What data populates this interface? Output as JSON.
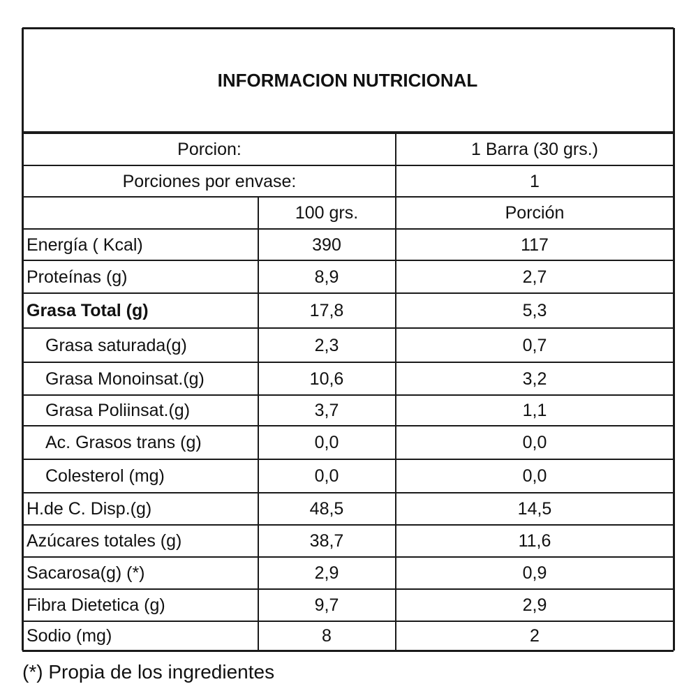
{
  "title": "INFORMACION NUTRICIONAL",
  "serving": [
    [
      "Porcion:",
      "1 Barra (30 grs.)"
    ],
    [
      "Porciones por envase:",
      "1"
    ]
  ],
  "table": {
    "header": [
      "100 grs.",
      "Porción"
    ],
    "rows": [
      [
        "Energía ( Kcal)",
        "390",
        "117"
      ],
      [
        "Proteínas (g)",
        "8,9",
        "2,7"
      ],
      [
        "Grasa Total (g)",
        "17,8",
        "5,3"
      ],
      [
        "Grasa saturada(g)",
        "2,3",
        "0,7"
      ],
      [
        "Grasa Monoinsat.(g)",
        "10,6",
        "3,2"
      ],
      [
        "Grasa Poliinsat.(g)",
        "3,7",
        "1,1"
      ],
      [
        "Ac. Grasos trans (g)",
        "0,0",
        "0,0"
      ],
      [
        "Colesterol (mg)",
        "0,0",
        "0,0"
      ],
      [
        "H.de C. Disp.(g)",
        "48,5",
        "14,5"
      ],
      [
        "Azúcares totales (g)",
        "38,7",
        "11,6"
      ],
      [
        "Sacarosa(g) (*)",
        "2,9",
        "0,9"
      ],
      [
        "Fibra Dietetica (g)",
        "9,7",
        "2,9"
      ],
      [
        "Sodio (mg)",
        "8",
        "2"
      ]
    ]
  },
  "footnote": "(*) Propia de los ingredientes"
}
